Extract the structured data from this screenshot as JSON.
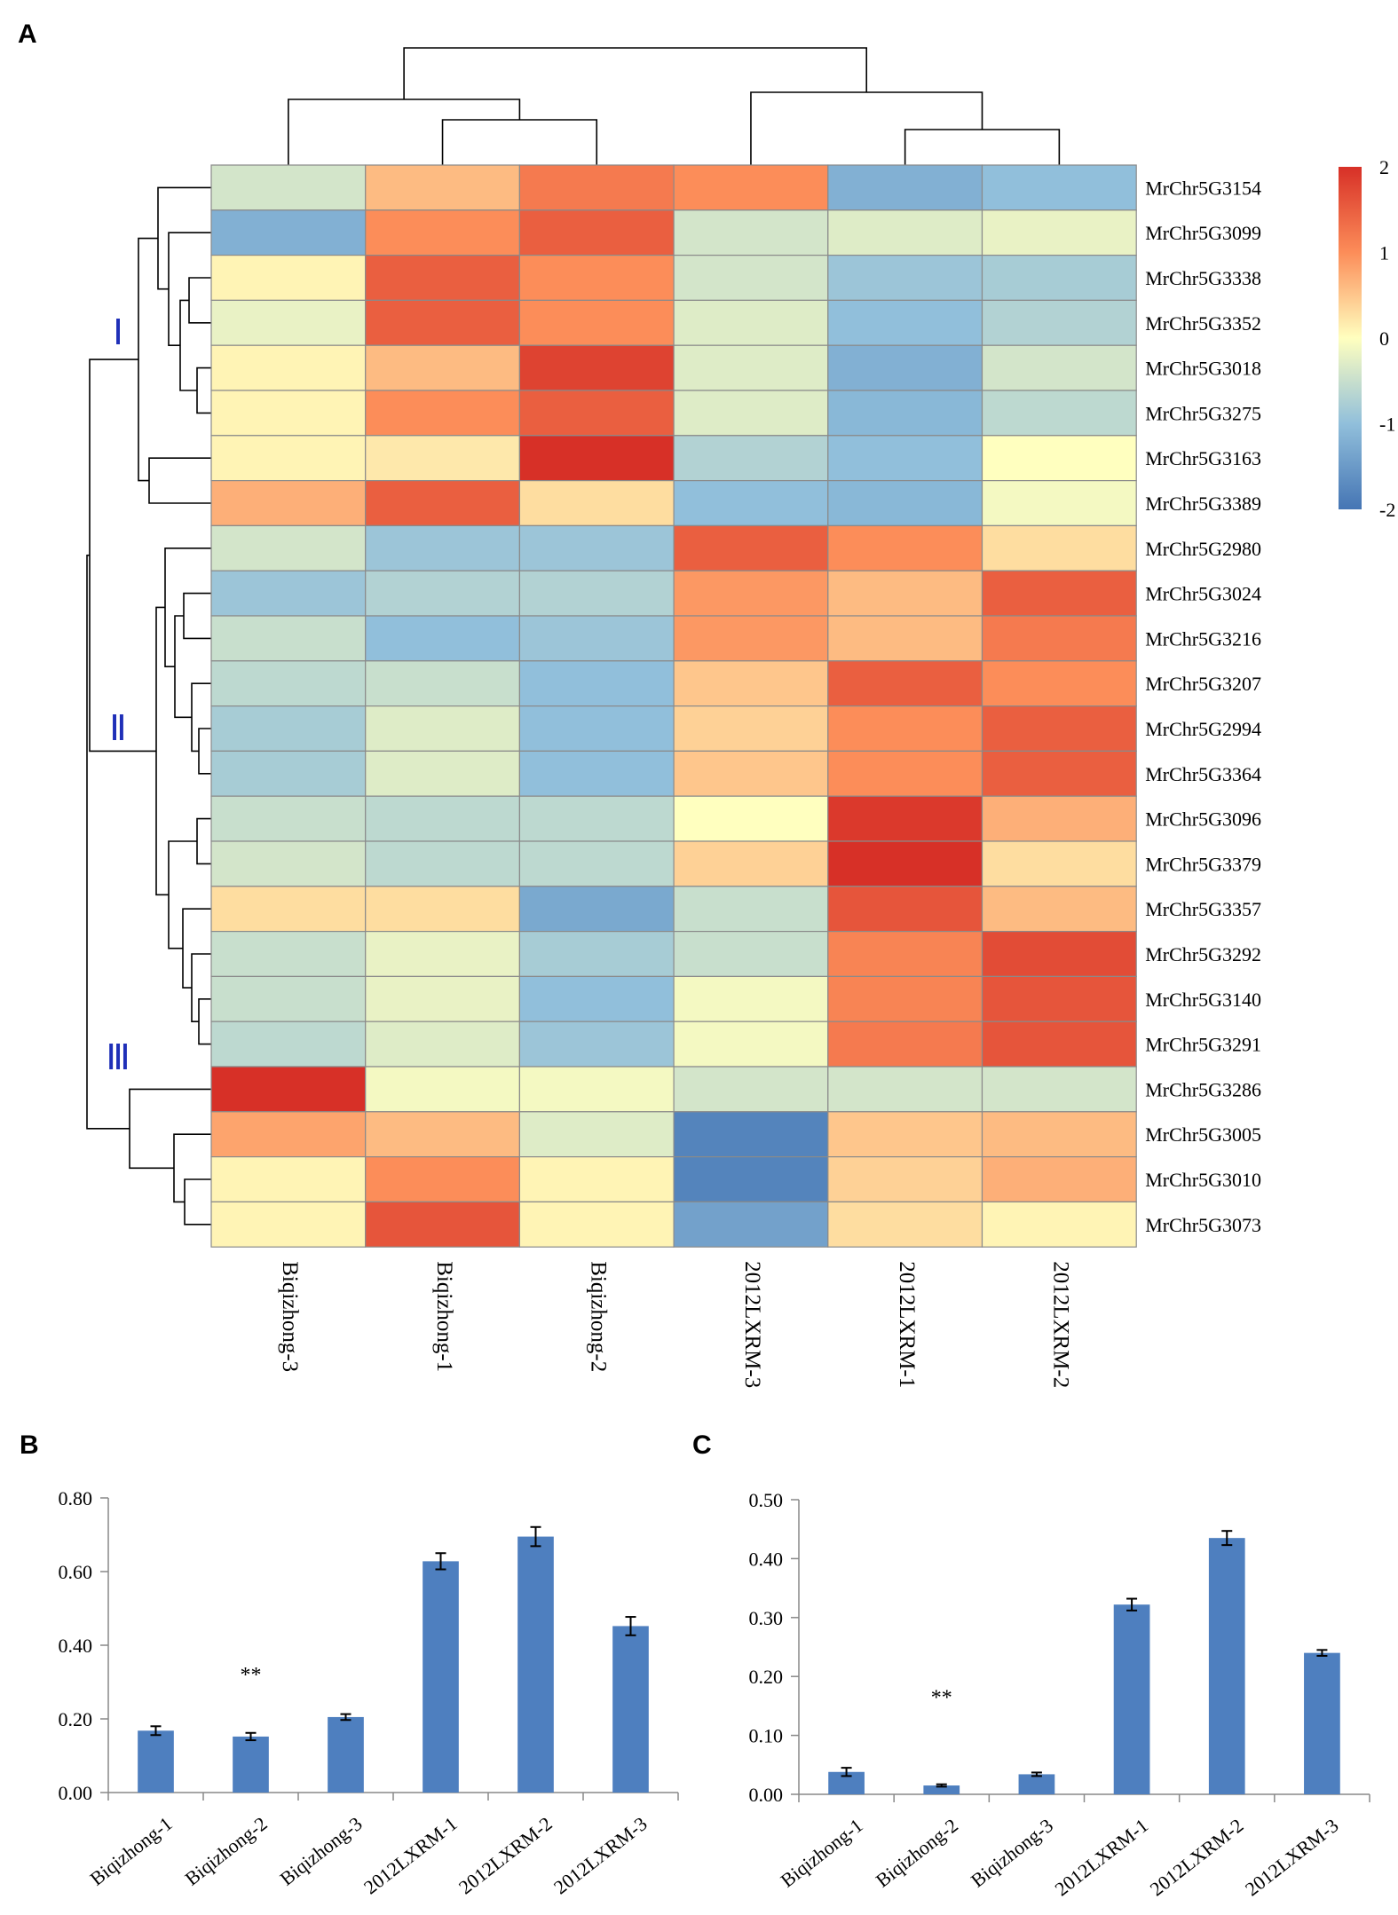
{
  "panel_labels": {
    "a": "A",
    "b": "B",
    "c": "C"
  },
  "chart_data": [
    {
      "type": "heatmap",
      "panel": "A",
      "columns": [
        "Biqizhong-3",
        "Biqizhong-1",
        "Biqizhong-2",
        "2012LXRM-3",
        "2012LXRM-1",
        "2012LXRM-2"
      ],
      "rows": [
        "MrChr5G3154",
        "MrChr5G3099",
        "MrChr5G3338",
        "MrChr5G3352",
        "MrChr5G3018",
        "MrChr5G3275",
        "MrChr5G3163",
        "MrChr5G3389",
        "MrChr5G2980",
        "MrChr5G3024",
        "MrChr5G3216",
        "MrChr5G3207",
        "MrChr5G2994",
        "MrChr5G3364",
        "MrChr5G3096",
        "MrChr5G3379",
        "MrChr5G3357",
        "MrChr5G3292",
        "MrChr5G3140",
        "MrChr5G3291",
        "MrChr5G3286",
        "MrChr5G3005",
        "MrChr5G3010",
        "MrChr5G3073"
      ],
      "values": [
        [
          -0.4,
          0.6,
          1.2,
          1.0,
          -1.2,
          -1.0
        ],
        [
          -1.2,
          1.0,
          1.5,
          -0.4,
          -0.3,
          -0.2
        ],
        [
          0.1,
          1.5,
          1.0,
          -0.4,
          -0.9,
          -0.8
        ],
        [
          -0.2,
          1.5,
          1.0,
          -0.3,
          -1.0,
          -0.7
        ],
        [
          0.1,
          0.6,
          1.8,
          -0.3,
          -1.2,
          -0.4
        ],
        [
          0.1,
          1.0,
          1.5,
          -0.3,
          -1.1,
          -0.6
        ],
        [
          0.1,
          0.2,
          2.0,
          -0.7,
          -1.0,
          0.0
        ],
        [
          0.7,
          1.5,
          0.3,
          -1.0,
          -1.1,
          -0.1
        ],
        [
          -0.4,
          -0.9,
          -0.9,
          1.5,
          1.0,
          0.3
        ],
        [
          -0.9,
          -0.7,
          -0.7,
          0.9,
          0.6,
          1.5
        ],
        [
          -0.5,
          -1.0,
          -0.9,
          0.9,
          0.6,
          1.2
        ],
        [
          -0.6,
          -0.5,
          -1.0,
          0.5,
          1.5,
          1.0
        ],
        [
          -0.8,
          -0.3,
          -1.0,
          0.4,
          1.0,
          1.5
        ],
        [
          -0.8,
          -0.3,
          -1.0,
          0.5,
          1.0,
          1.5
        ],
        [
          -0.5,
          -0.6,
          -0.6,
          0.0,
          1.9,
          0.7
        ],
        [
          -0.4,
          -0.6,
          -0.6,
          0.4,
          2.0,
          0.3
        ],
        [
          0.3,
          0.3,
          -1.3,
          -0.5,
          1.6,
          0.6
        ],
        [
          -0.5,
          -0.2,
          -0.8,
          -0.5,
          1.1,
          1.7
        ],
        [
          -0.5,
          -0.2,
          -1.0,
          -0.1,
          1.1,
          1.6
        ],
        [
          -0.6,
          -0.3,
          -0.9,
          -0.1,
          1.2,
          1.6
        ],
        [
          2.0,
          -0.1,
          -0.1,
          -0.4,
          -0.4,
          -0.4
        ],
        [
          0.8,
          0.6,
          -0.3,
          -1.8,
          0.5,
          0.6
        ],
        [
          0.1,
          1.0,
          0.1,
          -1.8,
          0.4,
          0.7
        ],
        [
          0.1,
          1.6,
          0.1,
          -1.4,
          0.3,
          0.1
        ]
      ],
      "colorbar": {
        "min": -2,
        "max": 2,
        "ticks": [
          "2",
          "1",
          "0",
          "-1",
          "-2"
        ],
        "colors": [
          "#4575b4",
          "#91bfdb",
          "#ffffbf",
          "#fc8d59",
          "#d73027"
        ]
      },
      "clusters": [
        "Ⅰ",
        "Ⅱ",
        "Ⅲ"
      ],
      "dendrograms": {
        "rows": true,
        "columns": true
      }
    },
    {
      "type": "bar",
      "panel": "B",
      "categories": [
        "Biqizhong-1",
        "Biqizhong-2",
        "Biqizhong-3",
        "2012LXRM-1",
        "2012LXRM-2",
        "2012LXRM-3"
      ],
      "values": [
        0.168,
        0.152,
        0.205,
        0.628,
        0.695,
        0.452
      ],
      "errors": [
        0.012,
        0.01,
        0.008,
        0.022,
        0.026,
        0.025
      ],
      "ylim": [
        0,
        0.8
      ],
      "yticks": [
        "0.00",
        "0.20",
        "0.40",
        "0.60",
        "0.80"
      ],
      "annotation": {
        "text": "**",
        "category_index": 1,
        "y": 0.32
      },
      "color": "#4e7fbf",
      "xlabel": "",
      "ylabel": ""
    },
    {
      "type": "bar",
      "panel": "C",
      "categories": [
        "Biqizhong-1",
        "Biqizhong-2",
        "Biqizhong-3",
        "2012LXRM-1",
        "2012LXRM-2",
        "2012LXRM-3"
      ],
      "values": [
        0.038,
        0.015,
        0.034,
        0.322,
        0.435,
        0.24
      ],
      "errors": [
        0.007,
        0.002,
        0.003,
        0.01,
        0.012,
        0.005
      ],
      "ylim": [
        0,
        0.5
      ],
      "yticks": [
        "0.00",
        "0.10",
        "0.20",
        "0.30",
        "0.40",
        "0.50"
      ],
      "annotation": {
        "text": "**",
        "category_index": 1,
        "y": 0.165
      },
      "color": "#4e7fbf",
      "xlabel": "",
      "ylabel": ""
    }
  ]
}
